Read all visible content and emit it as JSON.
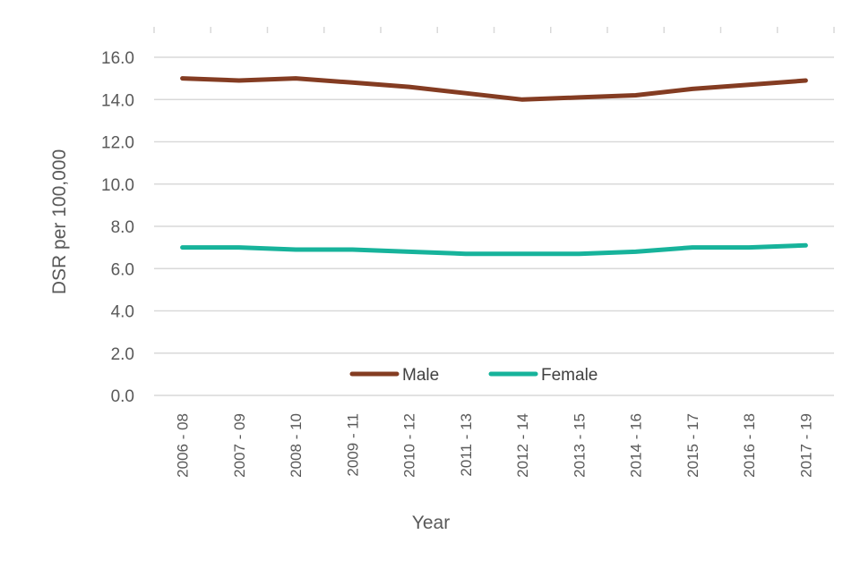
{
  "chart_data": {
    "type": "line",
    "title": "",
    "xlabel": "Year",
    "ylabel": "DSR per 100,000",
    "categories": [
      "2006 - 08",
      "2007 - 09",
      "2008 - 10",
      "2009 - 11",
      "2010 - 12",
      "2011 - 13",
      "2012 - 14",
      "2013 - 15",
      "2014 - 16",
      "2015 - 17",
      "2016 - 18",
      "2017 - 19"
    ],
    "ylim": [
      0,
      16
    ],
    "yticks": [
      0,
      2,
      4,
      6,
      8,
      10,
      12,
      14,
      16
    ],
    "ytick_labels": [
      "0.0",
      "2.0",
      "4.0",
      "6.0",
      "8.0",
      "10.0",
      "12.0",
      "14.0",
      "16.0"
    ],
    "grid": true,
    "legend_position": "bottom-center",
    "series": [
      {
        "name": "Male",
        "color": "#843c22",
        "values": [
          15.0,
          14.9,
          15.0,
          14.8,
          14.6,
          14.3,
          14.0,
          14.1,
          14.2,
          14.5,
          14.7,
          14.9
        ]
      },
      {
        "name": "Female",
        "color": "#17b39b",
        "values": [
          7.0,
          7.0,
          6.9,
          6.9,
          6.8,
          6.7,
          6.7,
          6.7,
          6.8,
          7.0,
          7.0,
          7.1
        ]
      }
    ]
  }
}
